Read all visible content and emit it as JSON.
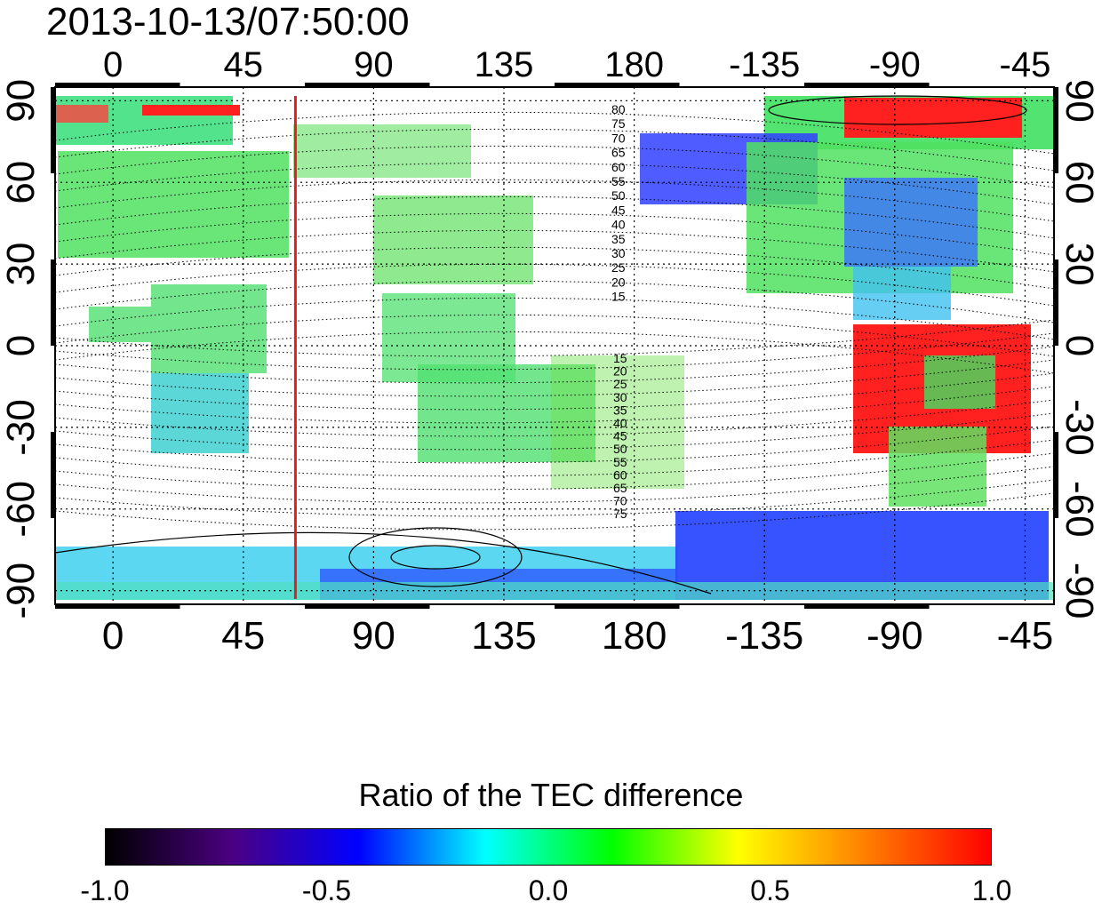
{
  "title": "2013-10-13/07:50:00",
  "map": {
    "lon_ticks_top": [
      "0",
      "45",
      "90",
      "135",
      "180",
      "-135",
      "-90",
      "-45"
    ],
    "lon_ticks_bottom": [
      "0",
      "45",
      "90",
      "135",
      "180",
      "-135",
      "-90",
      "-45"
    ],
    "lat_ticks_left": [
      "90",
      "60",
      "30",
      "0",
      "-30",
      "-60",
      "-90"
    ],
    "lat_ticks_right": [
      "90",
      "60",
      "30",
      "0",
      "-30",
      "-60",
      "-90"
    ],
    "lon_range": [
      -20,
      325
    ],
    "lat_range": [
      -95,
      95
    ],
    "terminator_longitude": 63,
    "terminator_color": "#e02020",
    "contour_labels_north": [
      "80",
      "75",
      "70",
      "65",
      "60",
      "55",
      "50",
      "45",
      "40",
      "35",
      "30",
      "25",
      "20",
      "15"
    ],
    "contour_labels_south": [
      "15",
      "20",
      "25",
      "30",
      "35",
      "40",
      "45",
      "50",
      "55",
      "60",
      "65",
      "70",
      "75"
    ]
  },
  "colorbar": {
    "title": "Ratio of the TEC difference",
    "ticks": [
      "-1.0",
      "-0.5",
      "0.0",
      "0.5",
      "1.0"
    ],
    "range": [
      -1.0,
      1.0
    ],
    "colors": [
      "#000000",
      "#4b0082",
      "#0000ff",
      "#00ffff",
      "#00ff00",
      "#ffff00",
      "#ff8000",
      "#ff0000"
    ]
  }
}
